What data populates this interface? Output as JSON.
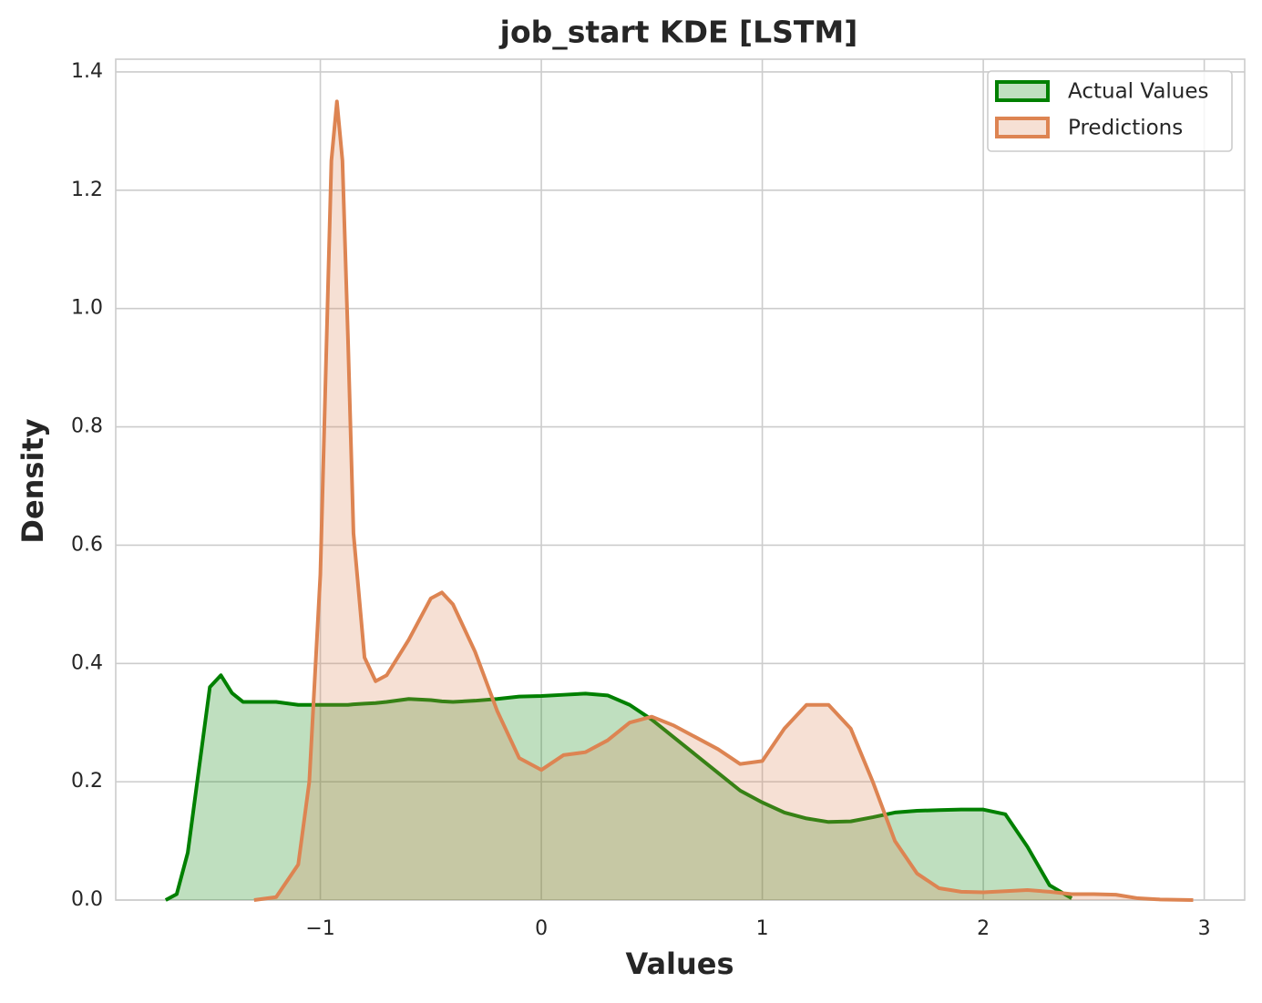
{
  "chart_data": {
    "type": "kde",
    "title": "job_start KDE [LSTM]",
    "x_label": "Values",
    "y_label": "Density",
    "x": [
      -1.7,
      -1.65,
      -1.6,
      -1.55,
      -1.5,
      -1.45,
      -1.4,
      -1.35,
      -1.3,
      -1.2,
      -1.1,
      -1.05,
      -1.0,
      -0.975,
      -0.95,
      -0.925,
      -0.9,
      -0.875,
      -0.85,
      -0.8,
      -0.75,
      -0.7,
      -0.6,
      -0.5,
      -0.45,
      -0.4,
      -0.3,
      -0.2,
      -0.1,
      0,
      0.1,
      0.2,
      0.3,
      0.4,
      0.5,
      0.6,
      0.7,
      0.8,
      0.9,
      1.0,
      1.1,
      1.2,
      1.3,
      1.4,
      1.5,
      1.6,
      1.7,
      1.8,
      1.9,
      2.0,
      2.1,
      2.2,
      2.3,
      2.4,
      2.5,
      2.6,
      2.7,
      2.8,
      2.95
    ],
    "series": [
      {
        "name": "Actual Values",
        "color": "#008000",
        "values": [
          0,
          0.01,
          0.08,
          0.22,
          0.36,
          0.38,
          0.35,
          0.335,
          0.335,
          0.335,
          0.33,
          0.33,
          0.33,
          0.33,
          0.33,
          0.33,
          0.33,
          0.33,
          0.331,
          0.332,
          0.333,
          0.335,
          0.34,
          0.338,
          0.336,
          0.335,
          0.337,
          0.34,
          0.344,
          0.345,
          0.347,
          0.349,
          0.346,
          0.33,
          0.305,
          0.275,
          0.245,
          0.215,
          0.185,
          0.165,
          0.148,
          0.138,
          0.132,
          0.133,
          0.14,
          0.148,
          0.151,
          0.152,
          0.153,
          0.153,
          0.145,
          0.09,
          0.025,
          0.003,
          null,
          null,
          null,
          null,
          null
        ]
      },
      {
        "name": "Predictions",
        "color": "#dd8452",
        "values": [
          null,
          null,
          null,
          null,
          null,
          null,
          null,
          null,
          0,
          0.005,
          0.06,
          0.2,
          0.55,
          0.9,
          1.25,
          1.35,
          1.25,
          0.95,
          0.62,
          0.41,
          0.37,
          0.38,
          0.44,
          0.51,
          0.52,
          0.5,
          0.42,
          0.32,
          0.24,
          0.22,
          0.245,
          0.25,
          0.27,
          0.3,
          0.31,
          0.295,
          0.275,
          0.255,
          0.23,
          0.235,
          0.29,
          0.33,
          0.33,
          0.29,
          0.2,
          0.1,
          0.045,
          0.02,
          0.014,
          0.013,
          0.015,
          0.017,
          0.014,
          0.01,
          0.01,
          0.009,
          0.003,
          0.001,
          0
        ]
      }
    ],
    "xlim": [
      -1.926,
      3.183
    ],
    "ylim": [
      0,
      1.4215
    ],
    "xticks": [
      {
        "value": -1,
        "label": "−1"
      },
      0,
      1,
      2,
      3
    ],
    "yticks": [
      {
        "value": 0,
        "label": "0.0"
      },
      {
        "value": 0.2,
        "label": "0.2"
      },
      {
        "value": 0.4,
        "label": "0.4"
      },
      {
        "value": 0.6,
        "label": "0.6"
      },
      {
        "value": 0.8,
        "label": "0.8"
      },
      {
        "value": 1.0,
        "label": "1.0"
      },
      {
        "value": 1.2,
        "label": "1.2"
      },
      {
        "value": 1.4,
        "label": "1.4"
      }
    ],
    "grid": true,
    "legend": "upper right",
    "fill_opacity": 0.25
  }
}
